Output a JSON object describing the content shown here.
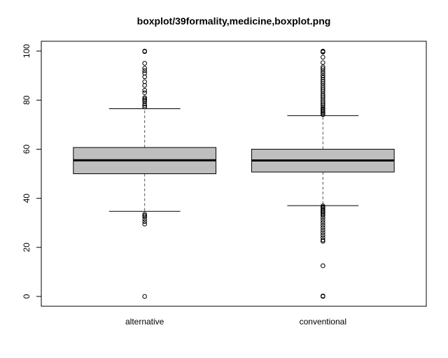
{
  "chart_data": {
    "type": "boxplot",
    "title": "boxplot/39formality,medicine,boxplot.png",
    "xlabel": "",
    "ylabel": "",
    "ylim": [
      -4,
      104
    ],
    "yticks": [
      0,
      20,
      40,
      60,
      80,
      100
    ],
    "grid": false,
    "colors": {
      "box_fill": "#bebebe",
      "stroke": "#000000",
      "whisker": "#555555"
    },
    "categories": [
      "alternative",
      "conventional"
    ],
    "boxes": [
      {
        "category": "alternative",
        "whisker_low": 34.7,
        "q1": 50.0,
        "median": 55.5,
        "q3": 60.7,
        "whisker_high": 76.5,
        "outliers": [
          100,
          99.8,
          95,
          93,
          92,
          91,
          89.5,
          87.5,
          86,
          84,
          83,
          81,
          80.5,
          80,
          79.5,
          78.5,
          77.8,
          77.2,
          33.5,
          33,
          32.5,
          31.5,
          30.5,
          29.5,
          0
        ]
      },
      {
        "category": "conventional",
        "whisker_low": 37.0,
        "q1": 50.7,
        "median": 55.4,
        "q3": 60.0,
        "whisker_high": 73.7,
        "outliers": [
          100,
          99.8,
          99.6,
          97.5,
          95.3,
          93.5,
          92.8,
          91.9,
          91,
          90,
          89.2,
          88.3,
          87.5,
          86.7,
          85.8,
          85,
          84.2,
          83.4,
          82.5,
          81.7,
          80.9,
          80,
          79.2,
          78.5,
          77.8,
          77.1,
          76.5,
          76,
          75.5,
          75,
          74.5,
          74.1,
          36.9,
          36.5,
          36,
          35.5,
          35,
          34.5,
          34,
          33.5,
          33,
          32,
          31,
          30,
          29,
          28,
          27,
          26,
          25,
          24,
          23,
          22.5,
          12.5,
          0.2,
          0
        ]
      }
    ]
  }
}
